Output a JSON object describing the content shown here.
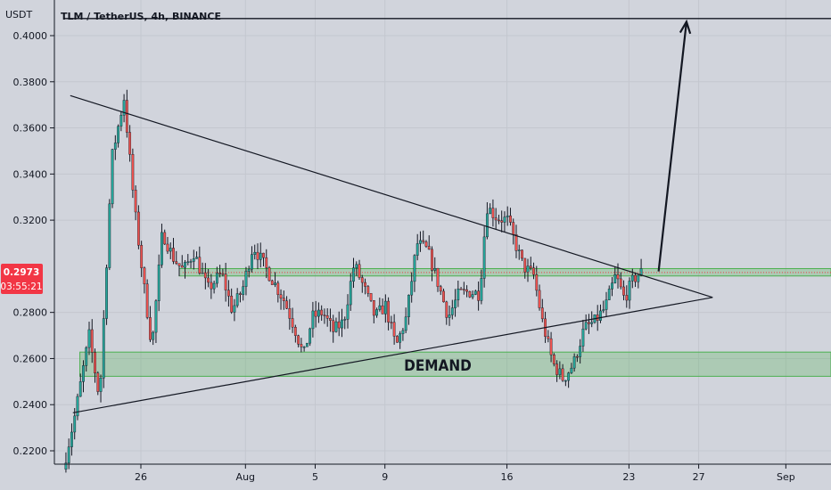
{
  "chart_data": {
    "type": "candlestick",
    "title": "TLM / TetherUS, 4h, BINANCE",
    "currency_label": "USDT",
    "y_ticks": [
      "0.4000",
      "0.3800",
      "0.3600",
      "0.3400",
      "0.3200",
      "0.2800",
      "0.2600",
      "0.2400",
      "0.2200"
    ],
    "ylim": [
      0.2125,
      0.407
    ],
    "x_ticks": [
      {
        "label": "26",
        "day": 26
      },
      {
        "label": "Aug",
        "day": 32
      },
      {
        "label": "5",
        "day": 36
      },
      {
        "label": "9",
        "day": 40
      },
      {
        "label": "16",
        "day": 47
      },
      {
        "label": "23",
        "day": 54
      },
      {
        "label": "27",
        "day": 58
      },
      {
        "label": "Sep",
        "day": 63
      }
    ],
    "current_price": {
      "value": 0.2973,
      "label": "0.2973",
      "countdown": "03:55:21",
      "color": "#f23645"
    },
    "zones": [
      {
        "label": "",
        "low": 0.2958,
        "high": 0.299,
        "from_day": 28.2,
        "color": "#4caf50"
      },
      {
        "label": "DEMAND",
        "low": 0.2523,
        "high": 0.2628,
        "from_day": 22.5,
        "color": "#4caf50"
      }
    ],
    "trendlines": [
      {
        "name": "upper",
        "from": [
          21.95,
          0.374
        ],
        "to": [
          58.8,
          0.2865
        ]
      },
      {
        "name": "lower",
        "from": [
          22.1,
          0.2365
        ],
        "to": [
          58.8,
          0.2865
        ]
      }
    ],
    "resistance_level": 0.4074,
    "projection_arrow": {
      "from": [
        55.7,
        0.2978
      ],
      "to": [
        57.3,
        0.406
      ]
    },
    "colors": {
      "up": "#26a69a",
      "down": "#ef5350",
      "wick": "#131722",
      "line": "#131722",
      "background": "#d1d4dc"
    },
    "candle_anchors": [
      [
        21.7,
        0.212
      ],
      [
        22.4,
        0.236
      ],
      [
        23.2,
        0.27
      ],
      [
        23.8,
        0.242
      ],
      [
        24.5,
        0.347
      ],
      [
        25.2,
        0.373
      ],
      [
        25.8,
        0.325
      ],
      [
        26.4,
        0.288
      ],
      [
        26.8,
        0.265
      ],
      [
        27.4,
        0.315
      ],
      [
        28.0,
        0.304
      ],
      [
        28.6,
        0.298
      ],
      [
        29.2,
        0.306
      ],
      [
        30.0,
        0.29
      ],
      [
        30.8,
        0.297
      ],
      [
        31.4,
        0.281
      ],
      [
        32.0,
        0.29
      ],
      [
        32.6,
        0.309
      ],
      [
        33.2,
        0.301
      ],
      [
        33.8,
        0.293
      ],
      [
        34.4,
        0.285
      ],
      [
        35.0,
        0.273
      ],
      [
        35.5,
        0.261
      ],
      [
        36.0,
        0.278
      ],
      [
        36.6,
        0.28
      ],
      [
        37.2,
        0.272
      ],
      [
        37.8,
        0.276
      ],
      [
        38.4,
        0.301
      ],
      [
        39.0,
        0.29
      ],
      [
        39.6,
        0.278
      ],
      [
        40.2,
        0.283
      ],
      [
        40.8,
        0.265
      ],
      [
        41.4,
        0.278
      ],
      [
        42.0,
        0.31
      ],
      [
        42.6,
        0.307
      ],
      [
        43.2,
        0.293
      ],
      [
        43.8,
        0.278
      ],
      [
        44.4,
        0.288
      ],
      [
        45.0,
        0.289
      ],
      [
        45.6,
        0.288
      ],
      [
        46.0,
        0.326
      ],
      [
        46.6,
        0.321
      ],
      [
        47.2,
        0.32
      ],
      [
        47.6,
        0.311
      ],
      [
        48.1,
        0.3
      ],
      [
        48.7,
        0.296
      ],
      [
        49.2,
        0.276
      ],
      [
        49.8,
        0.258
      ],
      [
        50.4,
        0.251
      ],
      [
        51.0,
        0.258
      ],
      [
        51.6,
        0.273
      ],
      [
        52.2,
        0.276
      ],
      [
        52.8,
        0.282
      ],
      [
        53.4,
        0.296
      ],
      [
        53.9,
        0.286
      ],
      [
        54.4,
        0.294
      ],
      [
        54.8,
        0.2973
      ]
    ]
  }
}
